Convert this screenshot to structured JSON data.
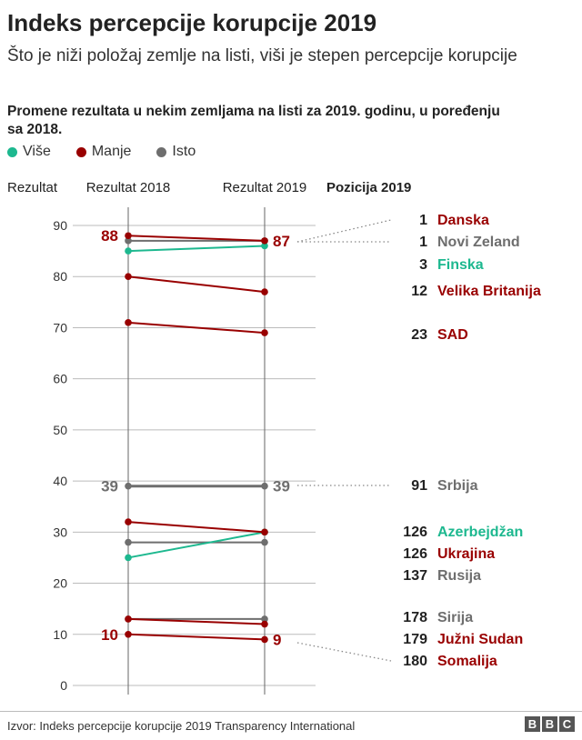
{
  "title": "Indeks percepcije korupcije 2019",
  "subtitle": "Što je niži položaj zemlje na listi, viši je stepen percepcije korupcije",
  "note": "Promene rezultata u nekim zemljama na listi za 2019. godinu, u poređenju sa 2018.",
  "legend": [
    {
      "label": "Više",
      "color": "#1db88f"
    },
    {
      "label": "Manje",
      "color": "#990000"
    },
    {
      "label": "Isto",
      "color": "#6e6e6e"
    }
  ],
  "source": "Izvor: Indeks percepcije korupcije 2019 Transparency International",
  "logo": [
    "B",
    "B",
    "C"
  ],
  "chart_data": {
    "type": "slope",
    "ylabel": "Rezultat",
    "columns": [
      "Rezultat 2018",
      "Rezultat 2019",
      "Pozicija 2019"
    ],
    "ylim": [
      0,
      90
    ],
    "yticks": [
      0,
      10,
      20,
      30,
      40,
      50,
      60,
      70,
      80,
      90
    ],
    "grid": true,
    "series": [
      {
        "name": "Danska",
        "rank": 1,
        "v2018": 88,
        "v2019": 87,
        "change": "Manje"
      },
      {
        "name": "Novi Zeland",
        "rank": 1,
        "v2018": 87,
        "v2019": 87,
        "change": "Isto"
      },
      {
        "name": "Finska",
        "rank": 3,
        "v2018": 85,
        "v2019": 86,
        "change": "Više"
      },
      {
        "name": "Velika Britanija",
        "rank": 12,
        "v2018": 80,
        "v2019": 77,
        "change": "Manje"
      },
      {
        "name": "SAD",
        "rank": 23,
        "v2018": 71,
        "v2019": 69,
        "change": "Manje"
      },
      {
        "name": "Srbija",
        "rank": 91,
        "v2018": 39,
        "v2019": 39,
        "change": "Isto"
      },
      {
        "name": "Azerbejdžan",
        "rank": 126,
        "v2018": 25,
        "v2019": 30,
        "change": "Više"
      },
      {
        "name": "Ukrajina",
        "rank": 126,
        "v2018": 32,
        "v2019": 30,
        "change": "Manje"
      },
      {
        "name": "Rusija",
        "rank": 137,
        "v2018": 28,
        "v2019": 28,
        "change": "Isto"
      },
      {
        "name": "Sirija",
        "rank": 178,
        "v2018": 13,
        "v2019": 13,
        "change": "Isto"
      },
      {
        "name": "Južni Sudan",
        "rank": 179,
        "v2018": 13,
        "v2019": 12,
        "change": "Manje"
      },
      {
        "name": "Somalija",
        "rank": 180,
        "v2018": 10,
        "v2019": 9,
        "change": "Manje"
      }
    ],
    "annotations": [
      {
        "text": "88",
        "column": "2018",
        "value": 88,
        "color": "#990000"
      },
      {
        "text": "87",
        "column": "2019",
        "value": 87,
        "color": "#990000"
      },
      {
        "text": "39",
        "column": "2018",
        "value": 39,
        "color": "#6e6e6e"
      },
      {
        "text": "39",
        "column": "2019",
        "value": 39,
        "color": "#6e6e6e"
      },
      {
        "text": "10",
        "column": "2018",
        "value": 10,
        "color": "#990000"
      },
      {
        "text": "9",
        "column": "2019",
        "value": 9,
        "color": "#990000"
      }
    ],
    "colors": {
      "Više": "#1db88f",
      "Manje": "#990000",
      "Isto": "#6e6e6e"
    }
  }
}
